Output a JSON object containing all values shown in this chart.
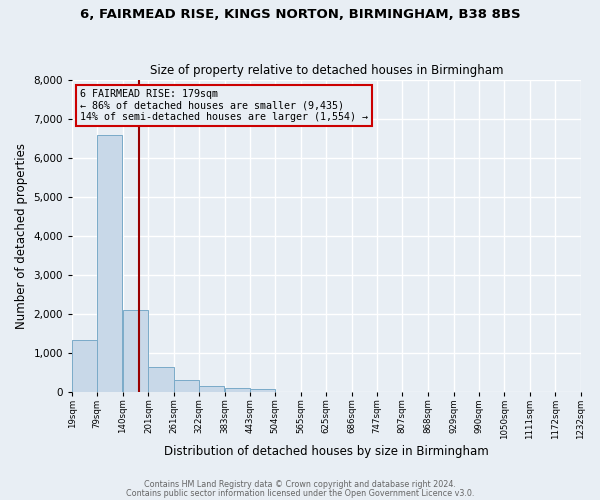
{
  "title1": "6, FAIRMEAD RISE, KINGS NORTON, BIRMINGHAM, B38 8BS",
  "title2": "Size of property relative to detached houses in Birmingham",
  "xlabel": "Distribution of detached houses by size in Birmingham",
  "ylabel": "Number of detached properties",
  "bar_color": "#c8d8e8",
  "bar_edgecolor": "#7aaac8",
  "bg_color": "#e8eef4",
  "grid_color": "#ffffff",
  "vline_x": 179,
  "vline_color": "#990000",
  "annotation_line1": "6 FAIRMEAD RISE: 179sqm",
  "annotation_line2": "← 86% of detached houses are smaller (9,435)",
  "annotation_line3": "14% of semi-detached houses are larger (1,554) →",
  "annotation_box_color": "#cc0000",
  "bin_edges": [
    19,
    79,
    140,
    201,
    261,
    322,
    383,
    443,
    504,
    565,
    625,
    686,
    747,
    807,
    868,
    929,
    990,
    1050,
    1111,
    1172,
    1232
  ],
  "bin_labels": [
    "19sqm",
    "79sqm",
    "140sqm",
    "201sqm",
    "261sqm",
    "322sqm",
    "383sqm",
    "443sqm",
    "504sqm",
    "565sqm",
    "625sqm",
    "686sqm",
    "747sqm",
    "807sqm",
    "868sqm",
    "929sqm",
    "990sqm",
    "1050sqm",
    "1111sqm",
    "1172sqm",
    "1232sqm"
  ],
  "bar_heights": [
    1320,
    6580,
    2080,
    640,
    295,
    135,
    85,
    75,
    0,
    0,
    0,
    0,
    0,
    0,
    0,
    0,
    0,
    0,
    0,
    0
  ],
  "ylim": [
    0,
    8000
  ],
  "yticks": [
    0,
    1000,
    2000,
    3000,
    4000,
    5000,
    6000,
    7000,
    8000
  ],
  "footer1": "Contains HM Land Registry data © Crown copyright and database right 2024.",
  "footer2": "Contains public sector information licensed under the Open Government Licence v3.0."
}
